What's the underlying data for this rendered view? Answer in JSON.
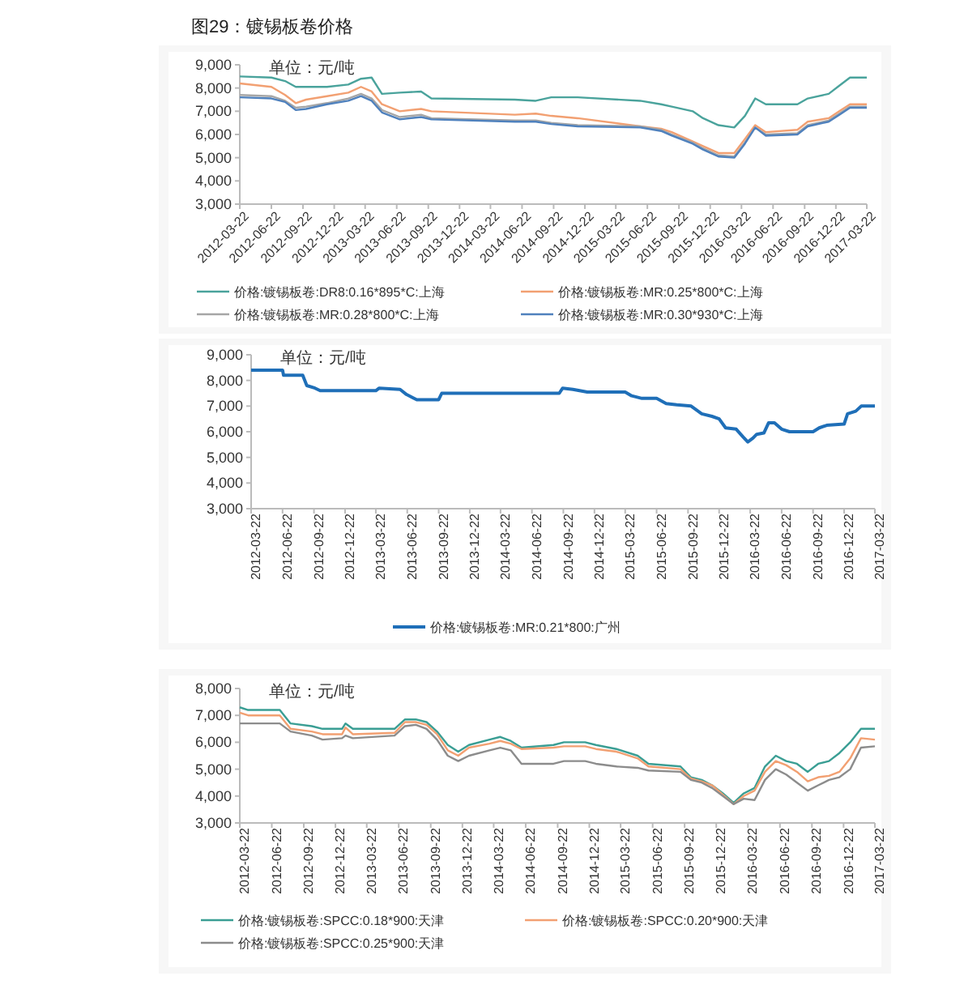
{
  "chart_data": [
    {
      "type": "line",
      "title": "图29：镀锡板卷价格",
      "annotations": [
        "单位：元/吨"
      ],
      "legend": "bottom",
      "ylim": [
        3000,
        9000
      ],
      "yticks": [
        {
          "value": 3000,
          "label": "3,000"
        },
        {
          "value": 4000,
          "label": "4,000"
        },
        {
          "value": 5000,
          "label": "5,000"
        },
        {
          "value": 6000,
          "label": "6,000"
        },
        {
          "value": 7000,
          "label": "7,000"
        },
        {
          "value": 8000,
          "label": "8,000"
        },
        {
          "value": 9000,
          "label": "9,000"
        }
      ],
      "xlim": [
        "2012-03-22",
        "2017-03-22"
      ],
      "xticks": [
        "2012-03-22",
        "2012-06-22",
        "2012-09-22",
        "2012-12-22",
        "2013-03-22",
        "2013-06-22",
        "2013-09-22",
        "2013-12-22",
        "2014-03-22",
        "2014-06-22",
        "2014-09-22",
        "2014-12-22",
        "2015-03-22",
        "2015-06-22",
        "2015-09-22",
        "2015-12-22",
        "2016-03-22",
        "2016-06-22",
        "2016-09-22",
        "2016-12-22",
        "2017-03-22"
      ],
      "x": [
        "2012-03-22",
        "2012-06-22",
        "2012-08-01",
        "2012-09-01",
        "2012-10-01",
        "2012-12-01",
        "2013-02-01",
        "2013-03-10",
        "2013-04-10",
        "2013-05-10",
        "2013-07-01",
        "2013-09-01",
        "2013-10-01",
        "2014-06-01",
        "2014-08-01",
        "2014-09-15",
        "2014-12-01",
        "2015-06-01",
        "2015-08-01",
        "2015-09-01",
        "2015-11-01",
        "2015-12-01",
        "2016-01-15",
        "2016-03-01",
        "2016-04-01",
        "2016-05-01",
        "2016-06-01",
        "2016-09-01",
        "2016-10-01",
        "2016-12-01",
        "2017-01-01",
        "2017-02-01",
        "2017-03-22"
      ],
      "series": [
        {
          "name": "价格:镀锡板卷:DR8:0.16*895*C:上海",
          "color": "#4aa39c",
          "values": [
            8500,
            8450,
            8300,
            8050,
            8050,
            8050,
            8150,
            8400,
            8450,
            7750,
            7800,
            7850,
            7550,
            7500,
            7450,
            7600,
            7600,
            7450,
            7300,
            7200,
            7000,
            6700,
            6400,
            6300,
            6800,
            7550,
            7300,
            7300,
            7550,
            7750,
            8100,
            8450,
            8450
          ]
        },
        {
          "name": "价格:镀锡板卷:MR:0.25*800*C:上海",
          "color": "#f2a072",
          "values": [
            8200,
            8050,
            7700,
            7350,
            7500,
            7650,
            7800,
            8050,
            7850,
            7300,
            7000,
            7100,
            7000,
            6850,
            6900,
            6800,
            6700,
            6350,
            6250,
            6100,
            5700,
            5500,
            5200,
            5200,
            5800,
            6400,
            6100,
            6200,
            6550,
            6700,
            7000,
            7300,
            7300
          ]
        },
        {
          "name": "价格:镀锡板卷:MR:0.28*800*C:上海",
          "color": "#a6a6a6",
          "values": [
            7700,
            7650,
            7450,
            7150,
            7200,
            7350,
            7550,
            7750,
            7550,
            7050,
            6750,
            6850,
            6700,
            6600,
            6600,
            6500,
            6400,
            6350,
            6200,
            6000,
            5650,
            5400,
            5100,
            5050,
            5650,
            6300,
            6000,
            6050,
            6400,
            6600,
            6900,
            7200,
            7200
          ]
        },
        {
          "name": "价格:镀锡板卷:MR:0.30*930*C:上海",
          "color": "#4f81bd",
          "values": [
            7600,
            7550,
            7400,
            7050,
            7100,
            7300,
            7450,
            7650,
            7450,
            6950,
            6650,
            6750,
            6650,
            6550,
            6550,
            6450,
            6350,
            6300,
            6150,
            5950,
            5600,
            5350,
            5050,
            5000,
            5600,
            6300,
            5950,
            6000,
            6350,
            6550,
            6850,
            7150,
            7150
          ]
        }
      ]
    },
    {
      "type": "line",
      "annotations": [
        "单位：元/吨"
      ],
      "legend": "bottom",
      "ylim": [
        3000,
        9000
      ],
      "yticks": [
        {
          "value": 3000,
          "label": "3,000"
        },
        {
          "value": 4000,
          "label": "4,000"
        },
        {
          "value": 5000,
          "label": "5,000"
        },
        {
          "value": 6000,
          "label": "6,000"
        },
        {
          "value": 7000,
          "label": "7,000"
        },
        {
          "value": 8000,
          "label": "8,000"
        },
        {
          "value": 9000,
          "label": "9,000"
        }
      ],
      "xlim": [
        "2012-03-22",
        "2017-03-22"
      ],
      "xticks": [
        "2012-03-22",
        "2012-06-22",
        "2012-09-22",
        "2012-12-22",
        "2013-03-22",
        "2013-06-22",
        "2013-09-22",
        "2013-12-22",
        "2014-03-22",
        "2014-06-22",
        "2014-09-22",
        "2014-12-22",
        "2015-03-22",
        "2015-06-22",
        "2015-09-22",
        "2015-12-22",
        "2016-03-22",
        "2016-06-22",
        "2016-09-22",
        "2016-12-22",
        "2017-03-22"
      ],
      "x": [
        "2012-03-22",
        "2012-06-22",
        "2012-06-25",
        "2012-08-20",
        "2012-09-01",
        "2012-09-25",
        "2012-10-10",
        "2013-03-22",
        "2013-04-01",
        "2013-06-01",
        "2013-06-20",
        "2013-07-20",
        "2013-09-22",
        "2013-10-01",
        "2014-09-10",
        "2014-09-20",
        "2014-10-20",
        "2014-12-01",
        "2015-03-22",
        "2015-04-10",
        "2015-05-10",
        "2015-06-22",
        "2015-07-20",
        "2015-08-20",
        "2015-10-01",
        "2015-11-01",
        "2015-12-01",
        "2015-12-22",
        "2016-01-10",
        "2016-02-10",
        "2016-03-01",
        "2016-03-15",
        "2016-03-30",
        "2016-04-10",
        "2016-05-01",
        "2016-05-15",
        "2016-06-01",
        "2016-06-22",
        "2016-07-15",
        "2016-09-22",
        "2016-10-10",
        "2016-11-01",
        "2016-12-22",
        "2017-01-01",
        "2017-01-25",
        "2017-02-10",
        "2017-03-22"
      ],
      "series": [
        {
          "name": "价格:镀锡板卷:MR:0.21*800:广州",
          "color": "#1f6fb8",
          "values": [
            8400,
            8400,
            8200,
            8200,
            7800,
            7700,
            7600,
            7600,
            7700,
            7650,
            7450,
            7250,
            7250,
            7500,
            7500,
            7700,
            7650,
            7550,
            7550,
            7400,
            7300,
            7300,
            7100,
            7050,
            7000,
            6700,
            6600,
            6500,
            6150,
            6100,
            5800,
            5600,
            5750,
            5900,
            5950,
            6350,
            6350,
            6100,
            6000,
            6000,
            6150,
            6250,
            6300,
            6700,
            6800,
            7000,
            7000
          ]
        }
      ]
    },
    {
      "type": "line",
      "annotations": [
        "单位：元/吨"
      ],
      "legend": "bottom",
      "ylim": [
        3000,
        8000
      ],
      "yticks": [
        {
          "value": 3000,
          "label": "3,000"
        },
        {
          "value": 4000,
          "label": "4,000"
        },
        {
          "value": 5000,
          "label": "5,000"
        },
        {
          "value": 6000,
          "label": "6,000"
        },
        {
          "value": 7000,
          "label": "7,000"
        },
        {
          "value": 8000,
          "label": "8,000"
        }
      ],
      "xlim": [
        "2012-03-22",
        "2017-03-22"
      ],
      "xticks": [
        "2012-03-22",
        "2012-06-22",
        "2012-09-22",
        "2012-12-22",
        "2013-03-22",
        "2013-06-22",
        "2013-09-22",
        "2013-12-22",
        "2014-03-22",
        "2014-06-22",
        "2014-09-22",
        "2014-12-22",
        "2015-03-22",
        "2015-06-22",
        "2015-09-22",
        "2015-12-22",
        "2016-03-22",
        "2016-06-22",
        "2016-09-22",
        "2016-12-22",
        "2017-03-22"
      ],
      "x": [
        "2012-03-22",
        "2012-04-15",
        "2012-07-15",
        "2012-08-15",
        "2012-10-15",
        "2012-11-15",
        "2013-01-10",
        "2013-01-20",
        "2013-02-10",
        "2013-06-10",
        "2013-07-10",
        "2013-08-10",
        "2013-09-10",
        "2013-10-10",
        "2013-11-10",
        "2013-12-10",
        "2014-01-10",
        "2014-03-10",
        "2014-04-10",
        "2014-05-10",
        "2014-06-10",
        "2014-09-10",
        "2014-10-10",
        "2014-12-10",
        "2015-01-10",
        "2015-03-10",
        "2015-05-10",
        "2015-06-10",
        "2015-09-10",
        "2015-10-10",
        "2015-11-10",
        "2015-12-10",
        "2016-01-10",
        "2016-02-10",
        "2016-03-10",
        "2016-04-10",
        "2016-05-10",
        "2016-06-10",
        "2016-07-10",
        "2016-08-10",
        "2016-09-10",
        "2016-10-10",
        "2016-11-10",
        "2016-12-10",
        "2017-01-10",
        "2017-02-10",
        "2017-03-22"
      ],
      "series": [
        {
          "name": "价格:镀锡板卷:SPCC:0.18*900:天津",
          "color": "#3a9e94",
          "values": [
            7300,
            7200,
            7200,
            6700,
            6600,
            6500,
            6500,
            6700,
            6500,
            6500,
            6850,
            6850,
            6750,
            6400,
            5900,
            5650,
            5900,
            6100,
            6200,
            6050,
            5800,
            5900,
            6000,
            6000,
            5900,
            5750,
            5500,
            5200,
            5100,
            4700,
            4600,
            4400,
            4100,
            3750,
            4100,
            4300,
            5100,
            5500,
            5300,
            5200,
            4900,
            5200,
            5300,
            5600,
            6000,
            6500,
            6500
          ]
        },
        {
          "name": "价格:镀锡板卷:SPCC:0.20*900:天津",
          "color": "#f2a072",
          "values": [
            7100,
            7000,
            7000,
            6500,
            6400,
            6300,
            6300,
            6550,
            6300,
            6350,
            6750,
            6750,
            6650,
            6300,
            5700,
            5500,
            5800,
            5950,
            6050,
            5950,
            5750,
            5800,
            5850,
            5850,
            5750,
            5650,
            5400,
            5100,
            5000,
            4650,
            4550,
            4400,
            4050,
            3700,
            4000,
            4200,
            4900,
            5300,
            5150,
            4900,
            4550,
            4700,
            4750,
            4900,
            5400,
            6150,
            6100
          ]
        },
        {
          "name": "价格:镀锡板卷:SPCC:0.25*900:天津",
          "color": "#8c8c8c",
          "values": [
            6700,
            6700,
            6700,
            6400,
            6250,
            6100,
            6150,
            6250,
            6150,
            6250,
            6600,
            6650,
            6500,
            6100,
            5500,
            5300,
            5500,
            5700,
            5800,
            5700,
            5200,
            5200,
            5300,
            5300,
            5200,
            5100,
            5050,
            4950,
            4900,
            4600,
            4500,
            4300,
            4000,
            3700,
            3900,
            3850,
            4600,
            5000,
            4800,
            4500,
            4200,
            4400,
            4600,
            4700,
            5000,
            5800,
            5850
          ]
        }
      ]
    }
  ]
}
